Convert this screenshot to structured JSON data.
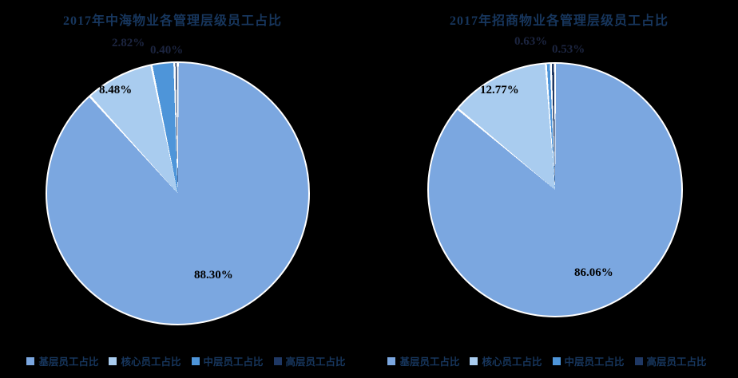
{
  "background_color": "#000000",
  "text_colors": {
    "title": "#17365d",
    "legend": "#17365d",
    "label_on_slice": "#000000",
    "label_outside": "#1c2540"
  },
  "chart_data": [
    {
      "type": "pie",
      "title": "2017年中海物业各管理层级员工占比",
      "categories": [
        "基层员工占比",
        "核心员工占比",
        "中层员工占比",
        "高层员工占比"
      ],
      "values": [
        88.3,
        8.48,
        2.82,
        0.4
      ],
      "labels": [
        "88.30%",
        "8.48%",
        "2.82%",
        "0.40%"
      ],
      "colors": [
        "#7BA7E0",
        "#A9CCEF",
        "#4E95D9",
        "#1F3864"
      ],
      "slice_border_color": "#FFFFFF",
      "start_angle": 0,
      "direction": "clockwise",
      "legend_position": "bottom",
      "grid": "off"
    },
    {
      "type": "pie",
      "title": "2017年招商物业各管理层级员工占比",
      "categories": [
        "基层员工占比",
        "核心员工占比",
        "中层员工占比",
        "高层员工占比"
      ],
      "values": [
        86.06,
        12.77,
        0.63,
        0.53
      ],
      "labels": [
        "86.06%",
        "12.77%",
        "0.63%",
        "0.53%"
      ],
      "colors": [
        "#7BA7E0",
        "#A9CCEF",
        "#4E95D9",
        "#1F3864"
      ],
      "slice_border_color": "#FFFFFF",
      "start_angle": 0,
      "direction": "clockwise",
      "legend_position": "bottom",
      "grid": "off"
    }
  ]
}
